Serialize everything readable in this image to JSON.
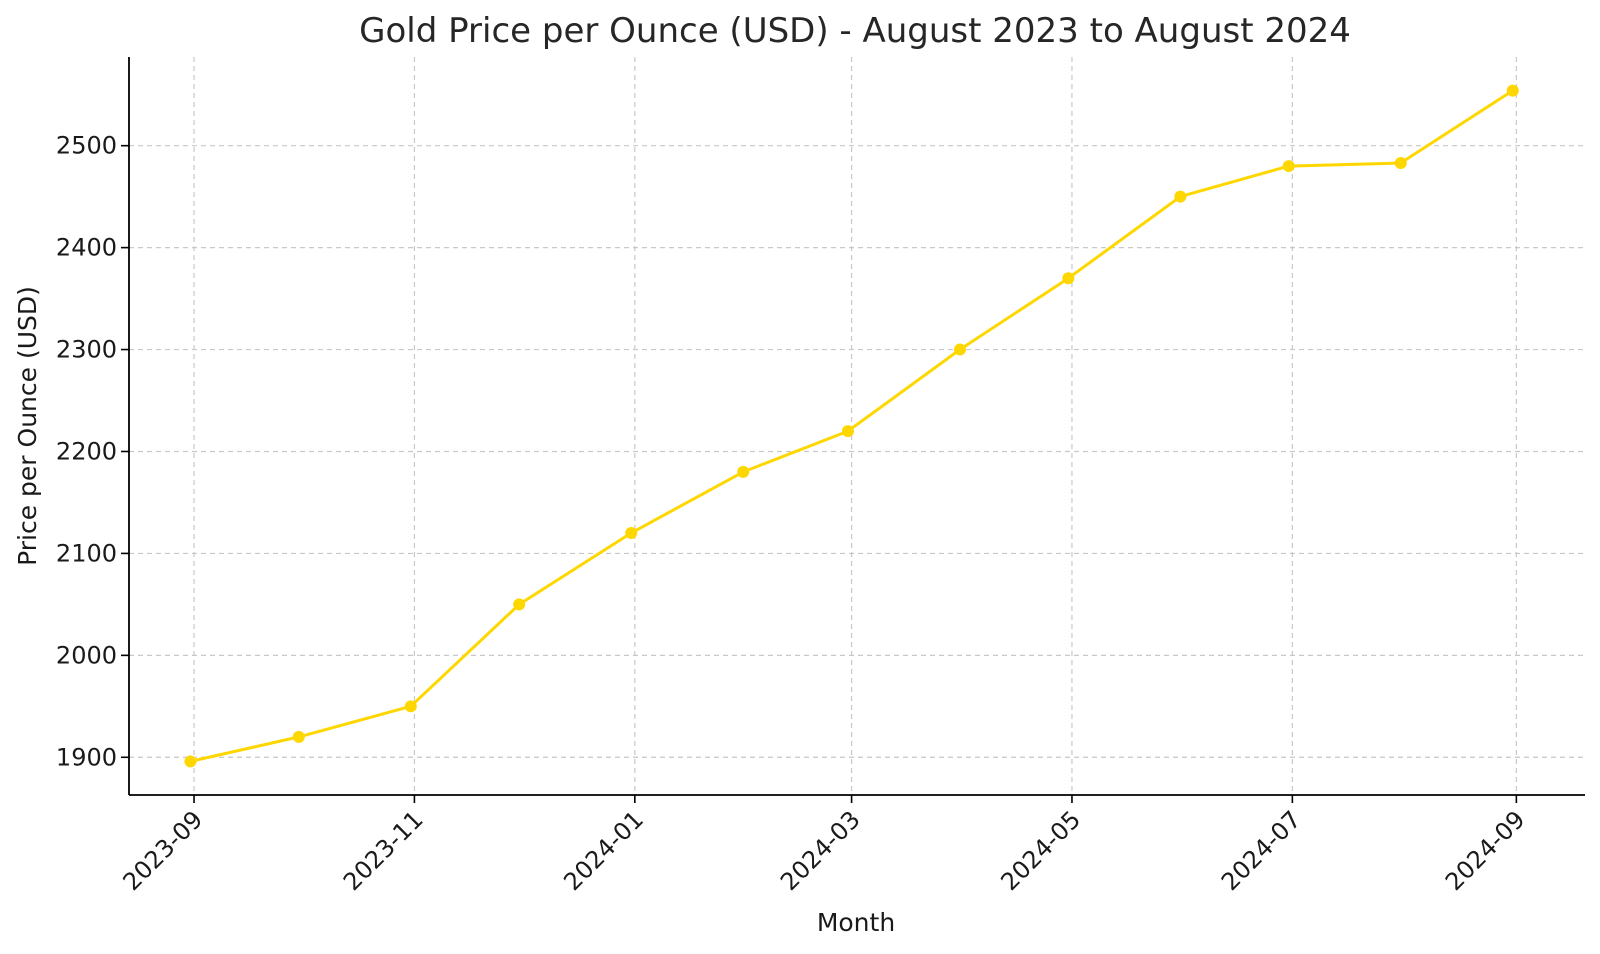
{
  "chart_data": {
    "type": "line",
    "title": "Gold Price per Ounce (USD) - August 2023 to August 2024",
    "xlabel": "Month",
    "ylabel": "Price per Ounce (USD)",
    "x_ticks": [
      "2023-09",
      "2023-11",
      "2024-01",
      "2024-03",
      "2024-05",
      "2024-07",
      "2024-09"
    ],
    "y_ticks": [
      1900,
      2000,
      2100,
      2200,
      2300,
      2400,
      2500
    ],
    "xlim": [
      "2023-08-14",
      "2024-09-20"
    ],
    "ylim": [
      1863,
      2587
    ],
    "grid": true,
    "series": [
      {
        "color": "#FFD700",
        "marker": "circle",
        "points": [
          {
            "x": "2023-08-31",
            "y": 1896
          },
          {
            "x": "2023-09-30",
            "y": 1920
          },
          {
            "x": "2023-10-31",
            "y": 1950
          },
          {
            "x": "2023-11-30",
            "y": 2050
          },
          {
            "x": "2023-12-31",
            "y": 2120
          },
          {
            "x": "2024-01-31",
            "y": 2180
          },
          {
            "x": "2024-02-29",
            "y": 2220
          },
          {
            "x": "2024-03-31",
            "y": 2300
          },
          {
            "x": "2024-04-30",
            "y": 2370
          },
          {
            "x": "2024-05-31",
            "y": 2450
          },
          {
            "x": "2024-06-30",
            "y": 2480
          },
          {
            "x": "2024-07-31",
            "y": 2483
          },
          {
            "x": "2024-08-31",
            "y": 2554
          }
        ]
      }
    ]
  }
}
